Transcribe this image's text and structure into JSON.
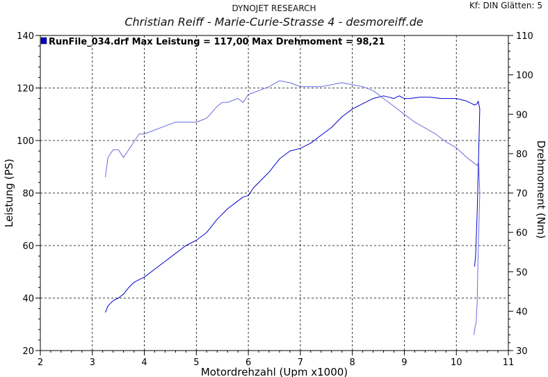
{
  "header": {
    "title": "DYNOJET RESEARCH",
    "subtitle": "Christian Reiff - Marie-Curie-Strasse 4 - desmoreiff.de",
    "settings": "Kf: DIN  Glätten: 5"
  },
  "chart_data": {
    "type": "line",
    "xlabel": "Motordrehzahl (Upm x1000)",
    "ylabel_left": "Leistung (PS)",
    "ylabel_right": "Drehmoment (Nm)",
    "xlim": [
      2,
      11
    ],
    "ylim_left": [
      20,
      140
    ],
    "ylim_right": [
      30,
      110
    ],
    "x_ticks": [
      "2",
      "3",
      "4",
      "5",
      "6",
      "7",
      "8",
      "9",
      "10",
      "11"
    ],
    "y_left_ticks": [
      "20",
      "40",
      "60",
      "80",
      "100",
      "120",
      "140"
    ],
    "y_right_ticks": [
      "30",
      "40",
      "50",
      "60",
      "70",
      "80",
      "90",
      "100",
      "110"
    ],
    "grid": true,
    "legend": {
      "placement": "top-left",
      "text": "RunFile_034.drf Max Leistung = 117,00     Max Drehmoment = 98,21"
    },
    "series": [
      {
        "name": "Leistung",
        "axis": "left",
        "color": "#0000cc",
        "x": [
          3.25,
          3.3,
          3.4,
          3.5,
          3.6,
          3.7,
          3.8,
          3.9,
          4.0,
          4.2,
          4.4,
          4.6,
          4.8,
          5.0,
          5.2,
          5.4,
          5.6,
          5.8,
          5.9,
          6.0,
          6.1,
          6.2,
          6.4,
          6.6,
          6.8,
          7.0,
          7.2,
          7.4,
          7.6,
          7.8,
          8.0,
          8.2,
          8.4,
          8.6,
          8.7,
          8.8,
          8.9,
          9.0,
          9.1,
          9.3,
          9.5,
          9.7,
          9.9,
          10.0,
          10.1,
          10.2,
          10.3,
          10.35,
          10.4,
          10.42,
          10.45,
          10.4,
          10.37,
          10.35
        ],
        "y": [
          34.5,
          37,
          39,
          40,
          41.5,
          44,
          46,
          47,
          48,
          51,
          54,
          57,
          60,
          62,
          65,
          70,
          74,
          77,
          78.5,
          79,
          82,
          84,
          88,
          93,
          96,
          97,
          99,
          102,
          105,
          109,
          112,
          114,
          116,
          117,
          116.5,
          116,
          117,
          116,
          116,
          116.5,
          116.5,
          116,
          116,
          116,
          115.5,
          115,
          114,
          113.5,
          114,
          115,
          112,
          72,
          56,
          52
        ]
      },
      {
        "name": "Drehmoment",
        "axis": "right",
        "color": "#6b6bdf",
        "x": [
          3.25,
          3.3,
          3.4,
          3.5,
          3.6,
          3.7,
          3.8,
          3.9,
          4.0,
          4.2,
          4.4,
          4.6,
          4.8,
          5.0,
          5.2,
          5.4,
          5.5,
          5.6,
          5.7,
          5.8,
          5.9,
          6.0,
          6.2,
          6.4,
          6.6,
          6.8,
          7.0,
          7.2,
          7.4,
          7.6,
          7.8,
          8.0,
          8.2,
          8.4,
          8.6,
          8.8,
          9.0,
          9.2,
          9.4,
          9.6,
          9.8,
          10.0,
          10.2,
          10.3,
          10.4,
          10.43,
          10.45,
          10.42,
          10.4,
          10.38,
          10.36,
          10.34
        ],
        "y": [
          74,
          79,
          81,
          81,
          79,
          81,
          83,
          85,
          85,
          86,
          87,
          88,
          88,
          88,
          89,
          92,
          93,
          93,
          93.5,
          94,
          93,
          95,
          96,
          97,
          98.5,
          98,
          97,
          97,
          97,
          97.5,
          98,
          97.5,
          97,
          96,
          94,
          92,
          90,
          88,
          86.5,
          85,
          83,
          81.5,
          79,
          78,
          77,
          78,
          70,
          55,
          42,
          37,
          36,
          34
        ]
      }
    ]
  }
}
